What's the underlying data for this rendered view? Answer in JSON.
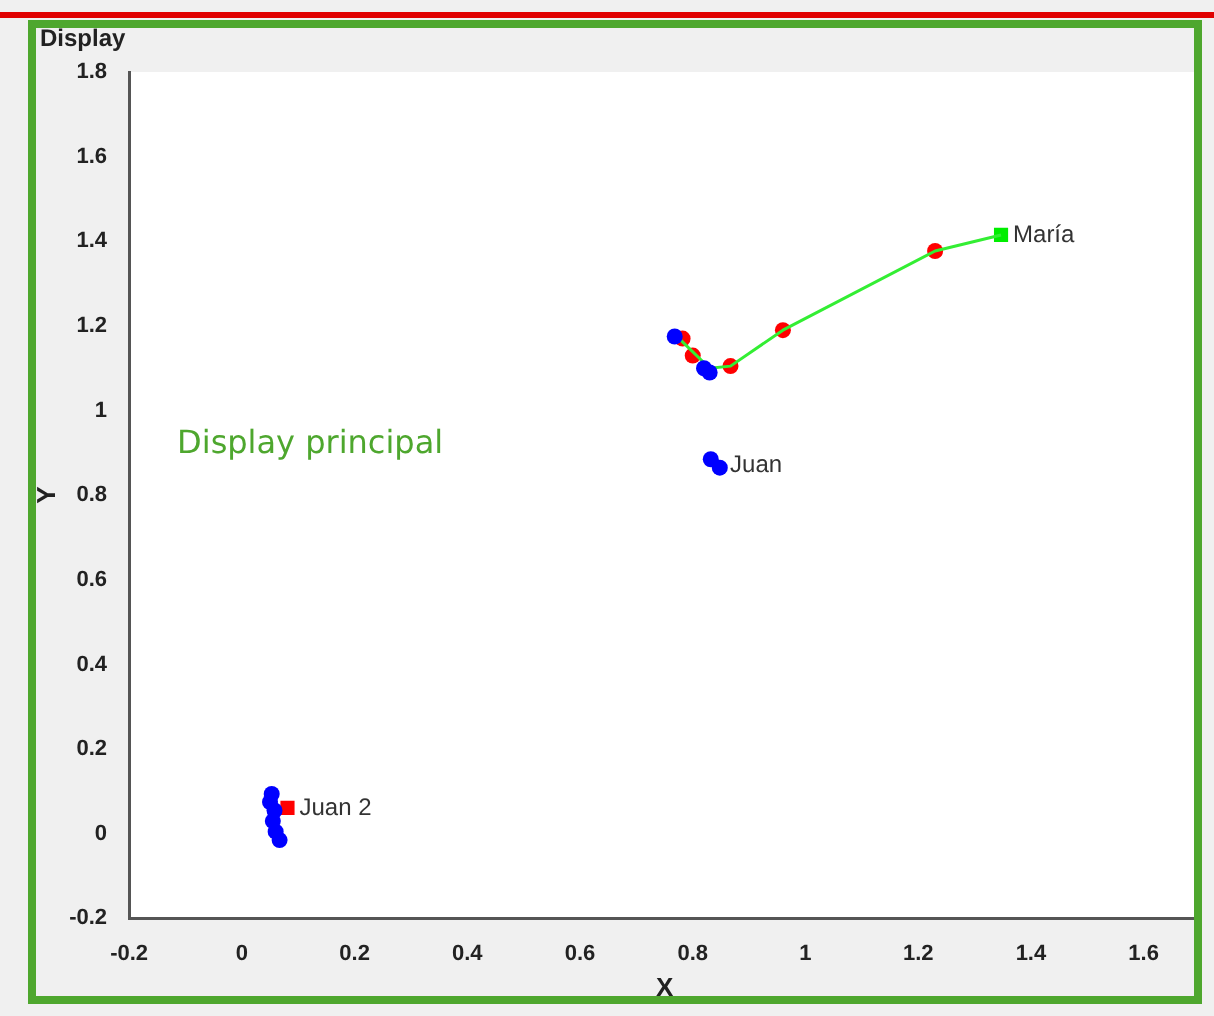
{
  "chart_data": {
    "type": "scatter",
    "title": "Display",
    "xlabel": "X",
    "ylabel": "Y",
    "xlim": [
      -0.2,
      1.7
    ],
    "xticks": [
      -0.2,
      0,
      0.2,
      0.4,
      0.6,
      0.8,
      1,
      1.2,
      1.4,
      1.6
    ],
    "ylim": [
      -0.2,
      1.8
    ],
    "yticks": [
      -0.2,
      0,
      0.2,
      0.4,
      0.6,
      0.8,
      1,
      1.2,
      1.4,
      1.6,
      1.8
    ],
    "grid": false,
    "legend": false,
    "series": [
      {
        "marker": "circle",
        "color": "#0000ff",
        "x": [
          0.053,
          0.05,
          0.058,
          0.055,
          0.06,
          0.067
        ],
        "values": [
          0.094,
          0.075,
          0.055,
          0.03,
          0.005,
          -0.015
        ]
      },
      {
        "marker": "square",
        "color": "#ff0000",
        "x": [
          0.081
        ],
        "values": [
          0.061
        ]
      },
      {
        "marker": "circle",
        "color": "#0000ff",
        "x": [
          0.768,
          0.82,
          0.83,
          0.832,
          0.848
        ],
        "values": [
          1.175,
          1.1,
          1.09,
          0.885,
          0.865
        ]
      },
      {
        "type": "line",
        "marker": "none",
        "color": "#33ee33",
        "x": [
          0.776,
          0.83,
          0.867,
          0.96,
          1.23,
          1.347
        ],
        "values": [
          1.17,
          1.1,
          1.105,
          1.19,
          1.377,
          1.415
        ]
      },
      {
        "marker": "circle",
        "color": "#ff0000",
        "x": [
          0.782,
          0.8,
          0.867,
          0.96,
          1.23
        ],
        "values": [
          1.17,
          1.13,
          1.105,
          1.19,
          1.377
        ]
      },
      {
        "marker": "square",
        "color": "#00ee00",
        "x": [
          1.347
        ],
        "values": [
          1.415
        ]
      }
    ],
    "annotations": [
      "Display principal",
      {
        "text": "María",
        "x": 1.347,
        "y": 1.415
      },
      {
        "text": "Juan",
        "x": 0.845,
        "y": 0.87
      },
      {
        "text": "Juan 2",
        "x": 0.081,
        "y": 0.061
      }
    ]
  }
}
